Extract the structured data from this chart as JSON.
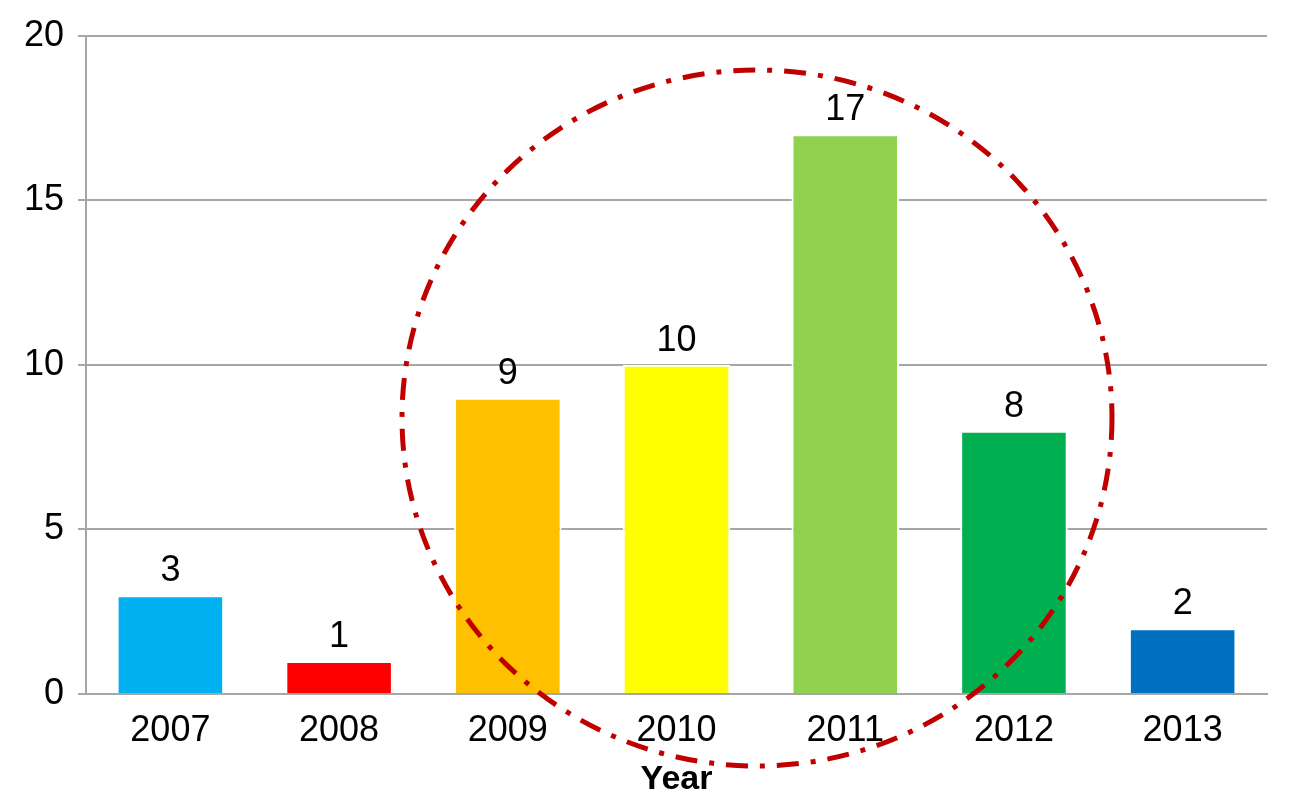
{
  "chart_data": {
    "type": "bar",
    "xlabel": "Year",
    "categories": [
      "2007",
      "2008",
      "2009",
      "2010",
      "2011",
      "2012",
      "2013"
    ],
    "values": [
      3,
      1,
      9,
      10,
      17,
      8,
      2
    ],
    "colors": [
      "#00b0f0",
      "#ff0000",
      "#ffc000",
      "#ffff00",
      "#92d050",
      "#00b050",
      "#0070c0"
    ],
    "ylim": [
      0,
      20
    ],
    "yticks": [
      0,
      5,
      10,
      15,
      20
    ],
    "grid": "y",
    "data_labels": true,
    "legend": false
  }
}
